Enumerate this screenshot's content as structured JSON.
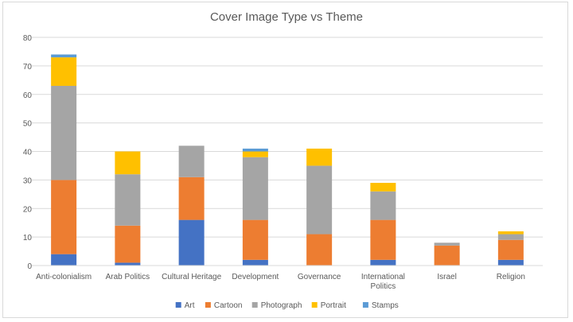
{
  "chart_data": {
    "type": "bar",
    "stacked": true,
    "title": "Cover Image Type vs Theme",
    "xlabel": "",
    "ylabel": "",
    "ylim": [
      0,
      80
    ],
    "yticks": [
      "0",
      "10",
      "20",
      "30",
      "40",
      "50",
      "60",
      "70",
      "80"
    ],
    "grid": true,
    "legend_position": "bottom",
    "categories": [
      [
        "Anti-colonialism"
      ],
      [
        "Arab Politics"
      ],
      [
        "Cultural Heritage"
      ],
      [
        "Development"
      ],
      [
        "Governance"
      ],
      [
        "International",
        "Politics"
      ],
      [
        "Israel"
      ],
      [
        "Religion"
      ]
    ],
    "series": [
      {
        "name": "Art",
        "color": "#4472c4",
        "values": [
          4,
          1,
          16,
          2,
          0,
          2,
          0,
          2
        ]
      },
      {
        "name": "Cartoon",
        "color": "#ed7d31",
        "values": [
          26,
          13,
          15,
          14,
          11,
          14,
          7,
          7
        ]
      },
      {
        "name": "Photograph",
        "color": "#a5a5a5",
        "values": [
          33,
          18,
          11,
          22,
          24,
          10,
          1,
          2
        ]
      },
      {
        "name": "Portrait",
        "color": "#ffc000",
        "values": [
          10,
          8,
          0,
          2,
          6,
          3,
          0,
          1
        ]
      },
      {
        "name": "Stamps",
        "color": "#5b9bd5",
        "values": [
          1,
          0,
          0,
          1,
          0,
          0,
          0,
          0
        ]
      }
    ]
  }
}
